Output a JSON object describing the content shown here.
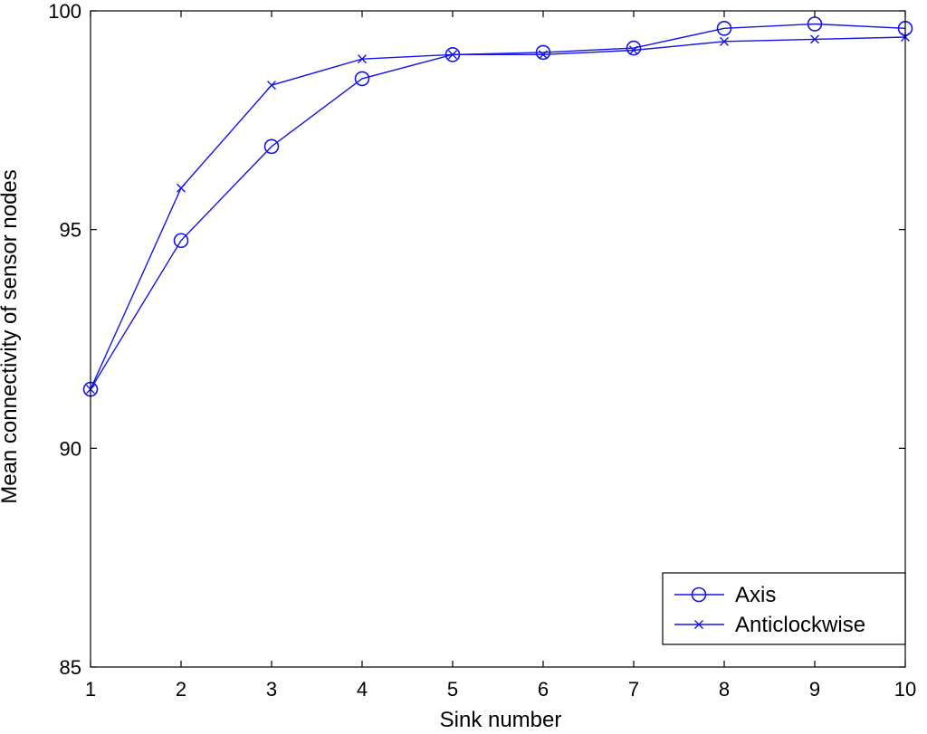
{
  "colors": {
    "series": "#1414e6",
    "axis": "#000000",
    "background": "#ffffff"
  },
  "chart_data": {
    "type": "line",
    "xlabel": "Sink number",
    "ylabel": "Mean connectivity of sensor nodes",
    "xlim": [
      1,
      10
    ],
    "ylim": [
      85,
      100
    ],
    "x_ticks": [
      1,
      2,
      3,
      4,
      5,
      6,
      7,
      8,
      9,
      10
    ],
    "y_ticks": [
      85,
      90,
      95,
      100
    ],
    "grid": false,
    "legend_position": "bottom-right",
    "x": [
      1,
      2,
      3,
      4,
      5,
      6,
      7,
      8,
      9,
      10
    ],
    "series": [
      {
        "name": "Axis",
        "marker": "circle",
        "values": [
          91.35,
          94.75,
          96.9,
          98.45,
          99.0,
          99.05,
          99.15,
          99.6,
          99.7,
          99.6
        ]
      },
      {
        "name": "Anticlockwise",
        "marker": "x",
        "values": [
          91.35,
          95.95,
          98.3,
          98.9,
          99.0,
          99.0,
          99.1,
          99.3,
          99.35,
          99.4
        ]
      }
    ]
  }
}
